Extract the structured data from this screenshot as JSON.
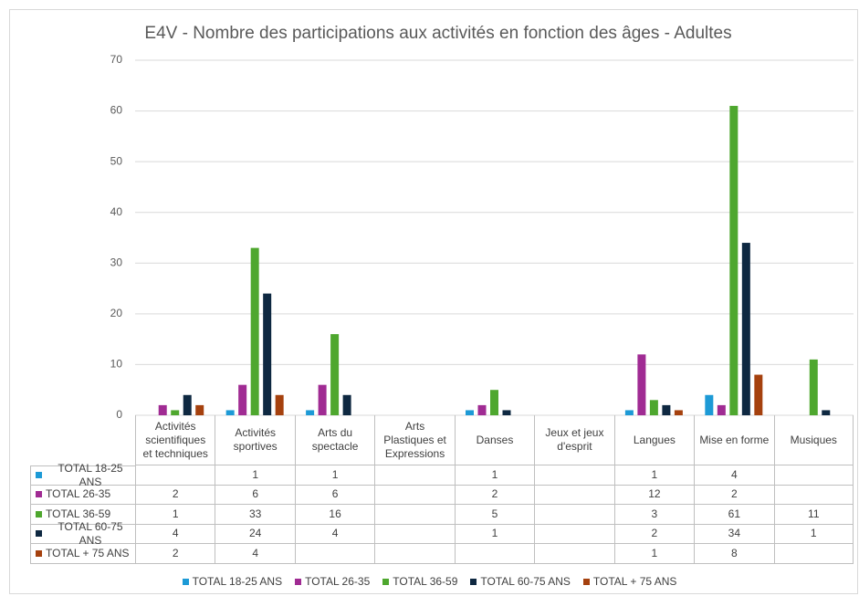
{
  "chart_data": {
    "type": "bar",
    "title": "E4V - Nombre des participations aux activités en fonction des âges - Adultes",
    "categories": [
      "Activités scientifiques et techniques",
      "Activités sportives",
      "Arts du spectacle",
      "Arts Plastiques et Expressions",
      "Danses",
      "Jeux et jeux d'esprit",
      "Langues",
      "Mise en forme",
      "Musiques"
    ],
    "series": [
      {
        "name": "TOTAL 18-25 ANS",
        "color": "#1d9ad6",
        "values": [
          null,
          1,
          1,
          null,
          1,
          null,
          1,
          4,
          null
        ]
      },
      {
        "name": "TOTAL 26-35",
        "color": "#a02b93",
        "values": [
          2,
          6,
          6,
          null,
          2,
          null,
          12,
          2,
          null
        ]
      },
      {
        "name": "TOTAL 36-59",
        "color": "#4ea72e",
        "values": [
          1,
          33,
          16,
          null,
          5,
          null,
          3,
          61,
          11
        ]
      },
      {
        "name": "TOTAL 60-75 ANS",
        "color": "#0e2841",
        "values": [
          4,
          24,
          4,
          null,
          1,
          null,
          2,
          34,
          1
        ]
      },
      {
        "name": "TOTAL + 75 ANS",
        "color": "#a5410e",
        "values": [
          2,
          4,
          null,
          null,
          null,
          null,
          1,
          8,
          null
        ]
      }
    ],
    "ylim": [
      0,
      70
    ],
    "yticks": [
      0,
      10,
      20,
      30,
      40,
      50,
      60,
      70
    ],
    "grid": true,
    "legend": "bottom",
    "data_table": true
  }
}
